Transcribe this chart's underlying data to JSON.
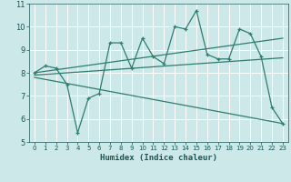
{
  "xlabel": "Humidex (Indice chaleur)",
  "xlim": [
    -0.5,
    23.5
  ],
  "ylim": [
    5,
    11
  ],
  "yticks": [
    5,
    6,
    7,
    8,
    9,
    10,
    11
  ],
  "xticks": [
    0,
    1,
    2,
    3,
    4,
    5,
    6,
    7,
    8,
    9,
    10,
    11,
    12,
    13,
    14,
    15,
    16,
    17,
    18,
    19,
    20,
    21,
    22,
    23
  ],
  "bg_color": "#cce8e8",
  "line_color": "#2e7d70",
  "grid_color": "#b0d4d4",
  "main_line_x": [
    0,
    1,
    2,
    3,
    4,
    5,
    6,
    7,
    8,
    9,
    10,
    11,
    12,
    13,
    14,
    15,
    16,
    17,
    18,
    19,
    20,
    21,
    22,
    23
  ],
  "main_line_y": [
    8.0,
    8.3,
    8.2,
    7.5,
    5.4,
    6.9,
    7.1,
    9.3,
    9.3,
    8.2,
    9.5,
    8.7,
    8.4,
    10.0,
    9.9,
    10.7,
    8.8,
    8.6,
    8.6,
    9.9,
    9.7,
    8.7,
    6.5,
    5.8
  ],
  "upper_line_x": [
    0,
    23
  ],
  "upper_line_y": [
    8.0,
    9.5
  ],
  "lower_line_x": [
    0,
    23
  ],
  "lower_line_y": [
    7.8,
    5.8
  ],
  "mid_line_x": [
    0,
    23
  ],
  "mid_line_y": [
    7.9,
    8.65
  ]
}
